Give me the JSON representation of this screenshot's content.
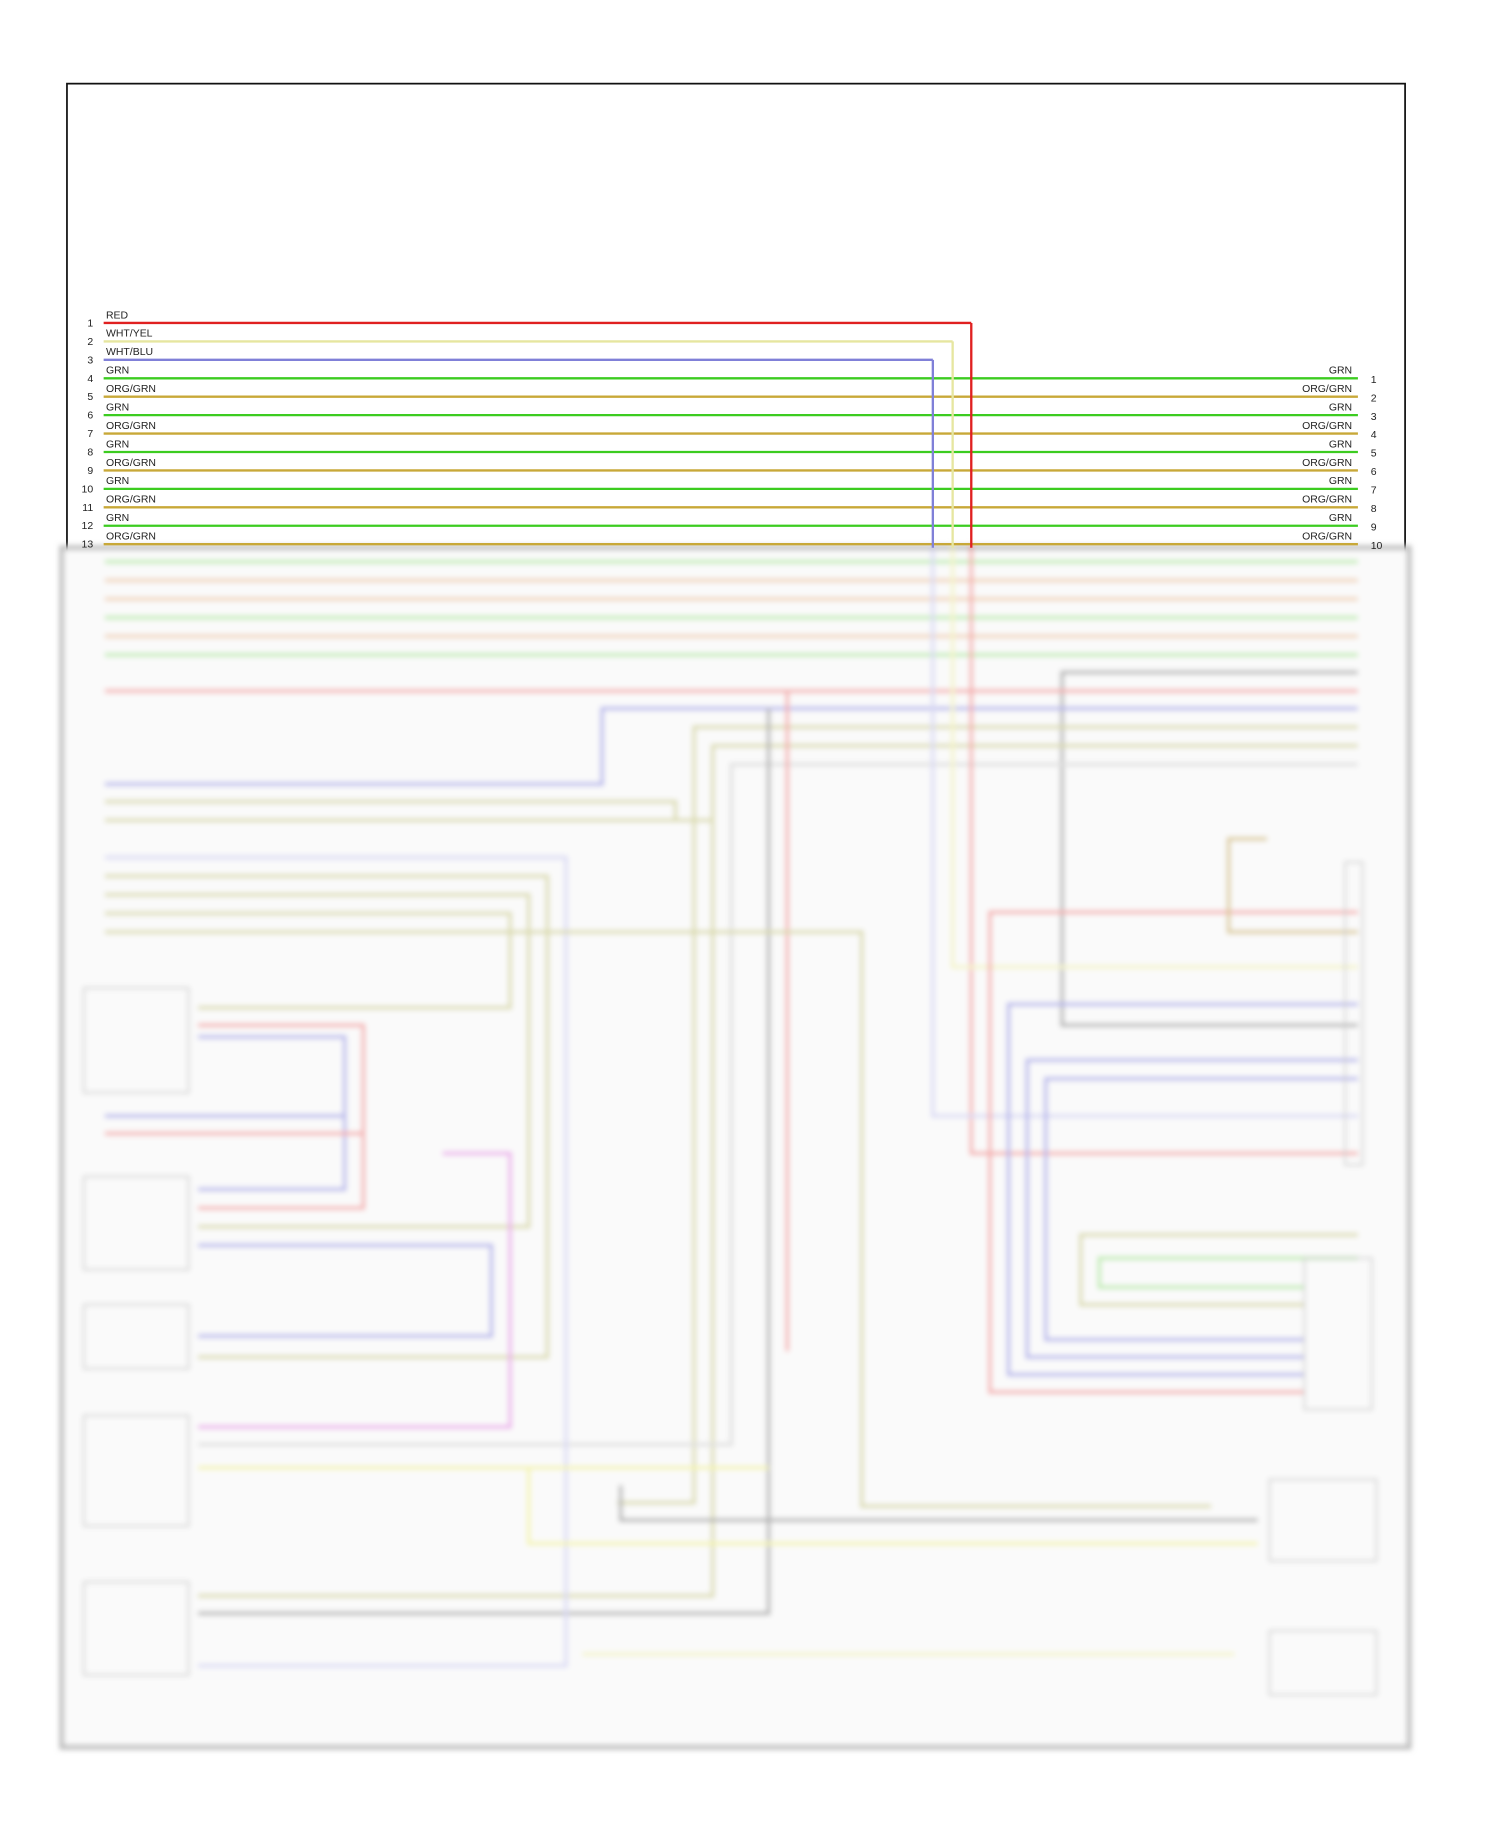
{
  "wire_colors": {
    "RED": "#e02020",
    "WHT/YEL": "#e6e6a0",
    "WHT/BLU": "#8080d8",
    "GRN": "#3ccc20",
    "ORG/GRN": "#c8a838"
  },
  "left_connector": {
    "wires": [
      {
        "pin": "1",
        "color": "RED"
      },
      {
        "pin": "2",
        "color": "WHT/YEL"
      },
      {
        "pin": "3",
        "color": "WHT/BLU"
      },
      {
        "pin": "4",
        "color": "GRN"
      },
      {
        "pin": "5",
        "color": "ORG/GRN"
      },
      {
        "pin": "6",
        "color": "GRN"
      },
      {
        "pin": "7",
        "color": "ORG/GRN"
      },
      {
        "pin": "8",
        "color": "GRN"
      },
      {
        "pin": "9",
        "color": "ORG/GRN"
      },
      {
        "pin": "10",
        "color": "GRN"
      },
      {
        "pin": "11",
        "color": "ORG/GRN"
      },
      {
        "pin": "12",
        "color": "GRN"
      },
      {
        "pin": "13",
        "color": "ORG/GRN"
      }
    ]
  },
  "right_connector": {
    "wires": [
      {
        "pin": "1",
        "color": "GRN"
      },
      {
        "pin": "2",
        "color": "ORG/GRN"
      },
      {
        "pin": "3",
        "color": "GRN"
      },
      {
        "pin": "4",
        "color": "ORG/GRN"
      },
      {
        "pin": "5",
        "color": "GRN"
      },
      {
        "pin": "6",
        "color": "ORG/GRN"
      },
      {
        "pin": "7",
        "color": "GRN"
      },
      {
        "pin": "8",
        "color": "ORG/GRN"
      },
      {
        "pin": "9",
        "color": "GRN"
      },
      {
        "pin": "10",
        "color": "ORG/GRN"
      }
    ]
  },
  "preview_blurred": true
}
